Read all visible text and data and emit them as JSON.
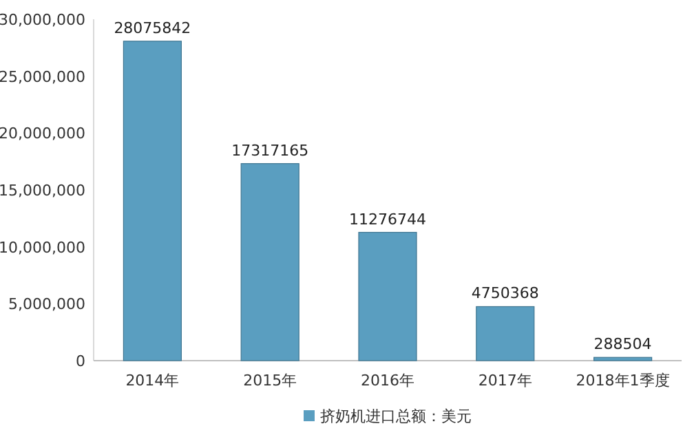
{
  "chart_data": {
    "type": "bar",
    "categories": [
      "2014年",
      "2015年",
      "2016年",
      "2017年",
      "2018年1季度"
    ],
    "series": [
      {
        "name": "挤奶机进口总额：美元",
        "color": "#5a9ec0",
        "values": [
          28075842,
          17317165,
          11276744,
          4750368,
          288504
        ]
      }
    ],
    "ylim": [
      0,
      30000000
    ],
    "yticks": [
      {
        "value": 0,
        "label": "0"
      },
      {
        "value": 5000000,
        "label": "5,000,000"
      },
      {
        "value": 10000000,
        "label": "10,000,000"
      },
      {
        "value": 15000000,
        "label": "15,000,000"
      },
      {
        "value": 20000000,
        "label": "20,000,000"
      },
      {
        "value": 25000000,
        "label": "25,000,000"
      },
      {
        "value": 30000000,
        "label": "30,000,000"
      }
    ],
    "data_labels": true,
    "legend": "bottom"
  }
}
